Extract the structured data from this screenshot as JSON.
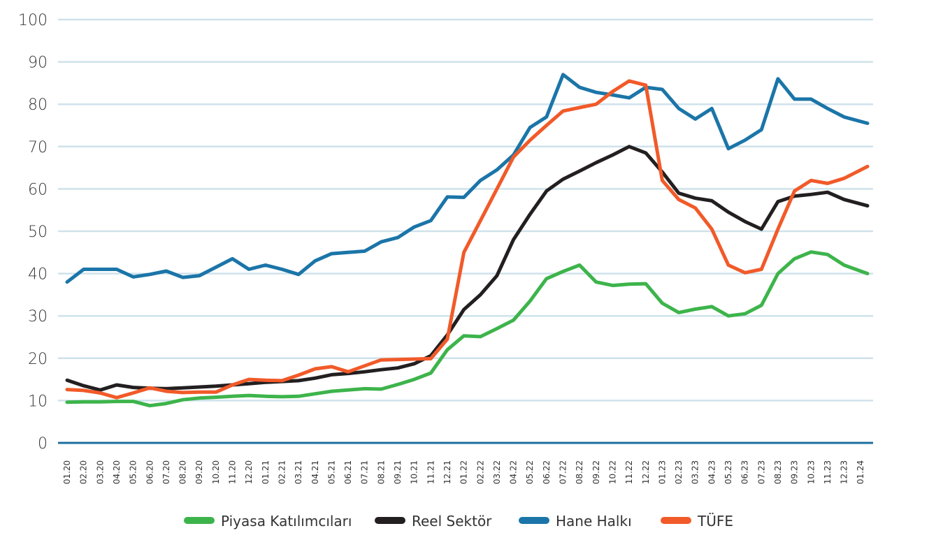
{
  "chart_data": {
    "type": "line",
    "title": "",
    "xlabel": "",
    "ylabel": "",
    "ylim": [
      0,
      100
    ],
    "yticks": [
      0,
      10,
      20,
      30,
      40,
      50,
      60,
      70,
      80,
      90,
      100
    ],
    "grid": true,
    "legend_position": "bottom",
    "categories": [
      "01.20",
      "02.20",
      "03.20",
      "04.20",
      "05.20",
      "06.20",
      "07.20",
      "08.20",
      "09.20",
      "10.20",
      "11.20",
      "12.20",
      "01.21",
      "02.21",
      "03.21",
      "04.21",
      "05.21",
      "06.21",
      "07.21",
      "08.21",
      "09.21",
      "10.21",
      "11.21",
      "12.21",
      "01.22",
      "02.22",
      "03.22",
      "04.22",
      "05.22",
      "06.22",
      "07.22",
      "08.22",
      "09.22",
      "10.22",
      "11.22",
      "12.22",
      "01.23",
      "02.23",
      "03.23",
      "04.23",
      "05.23",
      "06.23",
      "07.23",
      "08.23",
      "09.23",
      "10.23",
      "11.23",
      "12.23",
      "01.24"
    ],
    "series": [
      {
        "name": "Piyasa Katılımcıları",
        "color": "#3db44b",
        "values": [
          9.6,
          9.7,
          9.7,
          9.8,
          9.8,
          8.8,
          9.3,
          10.2,
          10.6,
          10.8,
          11,
          11.2,
          11,
          10.9,
          11,
          11.6,
          12.2,
          12.5,
          12.8,
          12.7,
          13.8,
          15,
          16.5,
          22,
          25.3,
          25.1,
          27,
          29,
          33.5,
          38.8,
          40.5,
          42,
          38,
          37.2,
          37.5,
          37.6,
          33,
          30.8,
          31.6,
          32.2,
          30,
          30.5,
          32.5,
          40,
          43.5,
          45.1,
          44.5,
          42,
          40
        ]
      },
      {
        "name": "Reel Sektör",
        "color": "#231f20",
        "values": [
          14.8,
          13.5,
          12.5,
          13.7,
          13.1,
          12.9,
          12.8,
          13,
          13.2,
          13.4,
          13.7,
          14,
          14.3,
          14.5,
          14.7,
          15.3,
          16.1,
          16.4,
          16.8,
          17.3,
          17.7,
          18.7,
          20.6,
          25.5,
          31.5,
          35,
          39.5,
          48,
          54,
          59.5,
          62.3,
          64.2,
          66.2,
          68,
          70,
          68.5,
          64,
          59,
          57.8,
          57.2,
          54.5,
          52.3,
          50.5,
          57,
          58.3,
          58.7,
          59.2,
          57.5,
          56
        ]
      },
      {
        "name": "Hane Halkı",
        "color": "#1b75a8",
        "values": [
          38,
          41,
          41,
          41,
          39.2,
          39.8,
          40.6,
          39.1,
          39.5,
          41.5,
          43.5,
          41,
          42,
          41,
          39.8,
          43,
          44.7,
          45,
          45.3,
          47.5,
          48.5,
          51,
          52.5,
          58.1,
          58,
          62,
          64.5,
          68,
          74.5,
          77,
          87,
          84,
          82.8,
          82.2,
          81.5,
          84,
          83.5,
          79,
          76.5,
          79,
          69.5,
          71.5,
          74,
          86,
          81.2,
          81.2,
          79,
          77,
          75.5
        ]
      },
      {
        "name": "TÜFE",
        "color": "#f15a29",
        "values": [
          12.6,
          12.4,
          11.8,
          10.7,
          11.8,
          13,
          12.2,
          11.9,
          12,
          12,
          13.7,
          15,
          14.8,
          14.7,
          16,
          17.5,
          18,
          16.8,
          18.2,
          19.6,
          19.7,
          19.8,
          19.9,
          24.5,
          45,
          52.5,
          60,
          67.5,
          71.5,
          75,
          78.4,
          79.2,
          80,
          83,
          85.5,
          84.5,
          62,
          57.5,
          55.5,
          50.5,
          42,
          40.2,
          41,
          50.5,
          59.5,
          62,
          61.3,
          62.5,
          65.3
        ]
      }
    ],
    "colors": {
      "grid": "#cfe2eb",
      "axis": "#1b6fa0"
    }
  }
}
